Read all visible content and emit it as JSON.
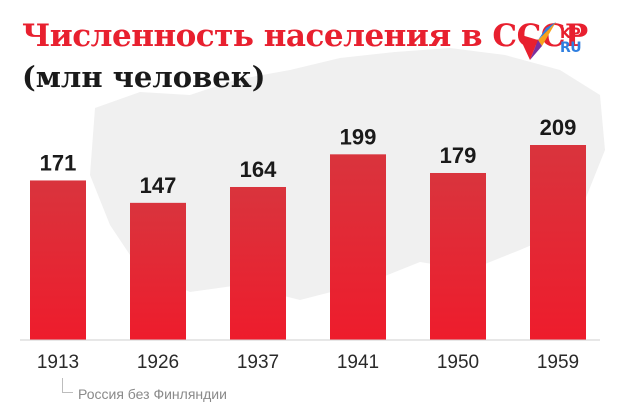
{
  "header": {
    "title": "Численность населения в СССР",
    "subtitle": "(млн человек)"
  },
  "logo": {
    "line1": "KP",
    "line2": "RU",
    "icon": "kp-bird-logo-icon"
  },
  "footnote": "Россия без Финляндии",
  "colors": {
    "bar": "#e8202f",
    "title": "#e8202f",
    "map": "#efefef"
  },
  "chart_data": {
    "type": "bar",
    "title": "Численность населения в СССР",
    "subtitle": "(млн человек)",
    "categories": [
      "1913",
      "1926",
      "1937",
      "1941",
      "1950",
      "1959"
    ],
    "values": [
      171,
      147,
      164,
      199,
      179,
      209
    ],
    "data_labels": [
      "171",
      "147",
      "164",
      "199",
      "179",
      "209"
    ],
    "xlabel": "",
    "ylabel": "",
    "grid": false,
    "legend": "none"
  }
}
